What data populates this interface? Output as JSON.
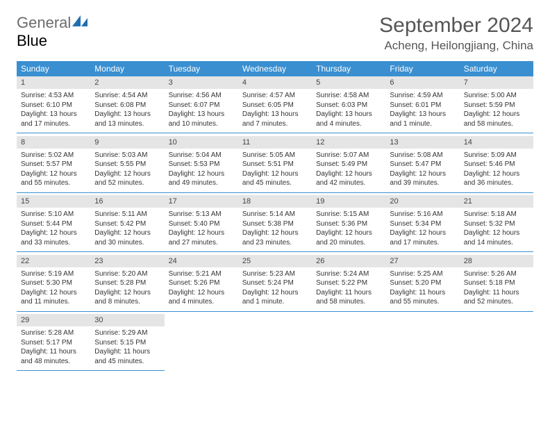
{
  "logo": {
    "general": "General",
    "blue": "Blue"
  },
  "title": "September 2024",
  "location": "Acheng, Heilongjiang, China",
  "header_color": "#3a8fd0",
  "daynum_bg": "#e5e5e5",
  "weekdays": [
    "Sunday",
    "Monday",
    "Tuesday",
    "Wednesday",
    "Thursday",
    "Friday",
    "Saturday"
  ],
  "weeks": [
    [
      {
        "n": "1",
        "sunrise": "Sunrise: 4:53 AM",
        "sunset": "Sunset: 6:10 PM",
        "day1": "Daylight: 13 hours",
        "day2": "and 17 minutes."
      },
      {
        "n": "2",
        "sunrise": "Sunrise: 4:54 AM",
        "sunset": "Sunset: 6:08 PM",
        "day1": "Daylight: 13 hours",
        "day2": "and 13 minutes."
      },
      {
        "n": "3",
        "sunrise": "Sunrise: 4:56 AM",
        "sunset": "Sunset: 6:07 PM",
        "day1": "Daylight: 13 hours",
        "day2": "and 10 minutes."
      },
      {
        "n": "4",
        "sunrise": "Sunrise: 4:57 AM",
        "sunset": "Sunset: 6:05 PM",
        "day1": "Daylight: 13 hours",
        "day2": "and 7 minutes."
      },
      {
        "n": "5",
        "sunrise": "Sunrise: 4:58 AM",
        "sunset": "Sunset: 6:03 PM",
        "day1": "Daylight: 13 hours",
        "day2": "and 4 minutes."
      },
      {
        "n": "6",
        "sunrise": "Sunrise: 4:59 AM",
        "sunset": "Sunset: 6:01 PM",
        "day1": "Daylight: 13 hours",
        "day2": "and 1 minute."
      },
      {
        "n": "7",
        "sunrise": "Sunrise: 5:00 AM",
        "sunset": "Sunset: 5:59 PM",
        "day1": "Daylight: 12 hours",
        "day2": "and 58 minutes."
      }
    ],
    [
      {
        "n": "8",
        "sunrise": "Sunrise: 5:02 AM",
        "sunset": "Sunset: 5:57 PM",
        "day1": "Daylight: 12 hours",
        "day2": "and 55 minutes."
      },
      {
        "n": "9",
        "sunrise": "Sunrise: 5:03 AM",
        "sunset": "Sunset: 5:55 PM",
        "day1": "Daylight: 12 hours",
        "day2": "and 52 minutes."
      },
      {
        "n": "10",
        "sunrise": "Sunrise: 5:04 AM",
        "sunset": "Sunset: 5:53 PM",
        "day1": "Daylight: 12 hours",
        "day2": "and 49 minutes."
      },
      {
        "n": "11",
        "sunrise": "Sunrise: 5:05 AM",
        "sunset": "Sunset: 5:51 PM",
        "day1": "Daylight: 12 hours",
        "day2": "and 45 minutes."
      },
      {
        "n": "12",
        "sunrise": "Sunrise: 5:07 AM",
        "sunset": "Sunset: 5:49 PM",
        "day1": "Daylight: 12 hours",
        "day2": "and 42 minutes."
      },
      {
        "n": "13",
        "sunrise": "Sunrise: 5:08 AM",
        "sunset": "Sunset: 5:47 PM",
        "day1": "Daylight: 12 hours",
        "day2": "and 39 minutes."
      },
      {
        "n": "14",
        "sunrise": "Sunrise: 5:09 AM",
        "sunset": "Sunset: 5:46 PM",
        "day1": "Daylight: 12 hours",
        "day2": "and 36 minutes."
      }
    ],
    [
      {
        "n": "15",
        "sunrise": "Sunrise: 5:10 AM",
        "sunset": "Sunset: 5:44 PM",
        "day1": "Daylight: 12 hours",
        "day2": "and 33 minutes."
      },
      {
        "n": "16",
        "sunrise": "Sunrise: 5:11 AM",
        "sunset": "Sunset: 5:42 PM",
        "day1": "Daylight: 12 hours",
        "day2": "and 30 minutes."
      },
      {
        "n": "17",
        "sunrise": "Sunrise: 5:13 AM",
        "sunset": "Sunset: 5:40 PM",
        "day1": "Daylight: 12 hours",
        "day2": "and 27 minutes."
      },
      {
        "n": "18",
        "sunrise": "Sunrise: 5:14 AM",
        "sunset": "Sunset: 5:38 PM",
        "day1": "Daylight: 12 hours",
        "day2": "and 23 minutes."
      },
      {
        "n": "19",
        "sunrise": "Sunrise: 5:15 AM",
        "sunset": "Sunset: 5:36 PM",
        "day1": "Daylight: 12 hours",
        "day2": "and 20 minutes."
      },
      {
        "n": "20",
        "sunrise": "Sunrise: 5:16 AM",
        "sunset": "Sunset: 5:34 PM",
        "day1": "Daylight: 12 hours",
        "day2": "and 17 minutes."
      },
      {
        "n": "21",
        "sunrise": "Sunrise: 5:18 AM",
        "sunset": "Sunset: 5:32 PM",
        "day1": "Daylight: 12 hours",
        "day2": "and 14 minutes."
      }
    ],
    [
      {
        "n": "22",
        "sunrise": "Sunrise: 5:19 AM",
        "sunset": "Sunset: 5:30 PM",
        "day1": "Daylight: 12 hours",
        "day2": "and 11 minutes."
      },
      {
        "n": "23",
        "sunrise": "Sunrise: 5:20 AM",
        "sunset": "Sunset: 5:28 PM",
        "day1": "Daylight: 12 hours",
        "day2": "and 8 minutes."
      },
      {
        "n": "24",
        "sunrise": "Sunrise: 5:21 AM",
        "sunset": "Sunset: 5:26 PM",
        "day1": "Daylight: 12 hours",
        "day2": "and 4 minutes."
      },
      {
        "n": "25",
        "sunrise": "Sunrise: 5:23 AM",
        "sunset": "Sunset: 5:24 PM",
        "day1": "Daylight: 12 hours",
        "day2": "and 1 minute."
      },
      {
        "n": "26",
        "sunrise": "Sunrise: 5:24 AM",
        "sunset": "Sunset: 5:22 PM",
        "day1": "Daylight: 11 hours",
        "day2": "and 58 minutes."
      },
      {
        "n": "27",
        "sunrise": "Sunrise: 5:25 AM",
        "sunset": "Sunset: 5:20 PM",
        "day1": "Daylight: 11 hours",
        "day2": "and 55 minutes."
      },
      {
        "n": "28",
        "sunrise": "Sunrise: 5:26 AM",
        "sunset": "Sunset: 5:18 PM",
        "day1": "Daylight: 11 hours",
        "day2": "and 52 minutes."
      }
    ],
    [
      {
        "n": "29",
        "sunrise": "Sunrise: 5:28 AM",
        "sunset": "Sunset: 5:17 PM",
        "day1": "Daylight: 11 hours",
        "day2": "and 48 minutes."
      },
      {
        "n": "30",
        "sunrise": "Sunrise: 5:29 AM",
        "sunset": "Sunset: 5:15 PM",
        "day1": "Daylight: 11 hours",
        "day2": "and 45 minutes."
      },
      null,
      null,
      null,
      null,
      null
    ]
  ]
}
